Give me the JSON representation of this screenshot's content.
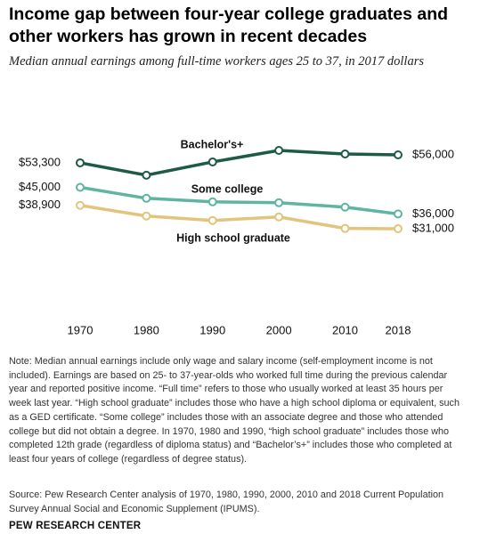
{
  "chart_data": {
    "type": "line",
    "title": "Income gap between four-year college graduates and other workers has grown in recent decades",
    "subtitle": "Median annual earnings among full-time workers ages 25 to 37, in 2017 dollars",
    "x": [
      1970,
      1980,
      1990,
      2000,
      2010,
      2018
    ],
    "series": [
      {
        "name": "Bachelor's+",
        "color": "#1d5a47",
        "values": [
          53300,
          49100,
          53600,
          57500,
          56300,
          56000
        ],
        "value_labels": [
          "$53,300",
          null,
          null,
          null,
          null,
          "$56,000"
        ]
      },
      {
        "name": "Some college",
        "color": "#5fb4a2",
        "values": [
          45000,
          41300,
          40100,
          39800,
          38300,
          36000
        ],
        "value_labels": [
          "$45,000",
          null,
          null,
          null,
          null,
          "$36,000"
        ]
      },
      {
        "name": "High school graduate",
        "color": "#e2c47c",
        "values": [
          38900,
          35300,
          33800,
          35000,
          31100,
          31000
        ],
        "value_labels": [
          "$38,900",
          null,
          null,
          null,
          null,
          "$31,000"
        ]
      }
    ],
    "note": "Note: Median annual earnings include only wage and salary income (self-employment income is not included). Earnings are based on 25- to 37-year-olds who worked full time during the previous calendar year and reported positive income. “Full time” refers to those who usually worked at least 35 hours per week last year. “High school graduate” includes those who have a high school diploma or equivalent, such as a GED certificate. “Some college” includes those with an associate degree and those who attended college but did not obtain a degree. In 1970, 1980 and 1990, “high school graduate” includes those who completed 12th grade (regardless of diploma status) and “Bachelor’s+” includes those who completed at least four years of college (regardless of degree status).",
    "source": "Source: Pew Research Center analysis of 1970, 1980, 1990, 2000, 2010 and 2018 Current Population Survey Annual Social and Economic Supplement (IPUMS).",
    "credit": "PEW RESEARCH CENTER"
  }
}
